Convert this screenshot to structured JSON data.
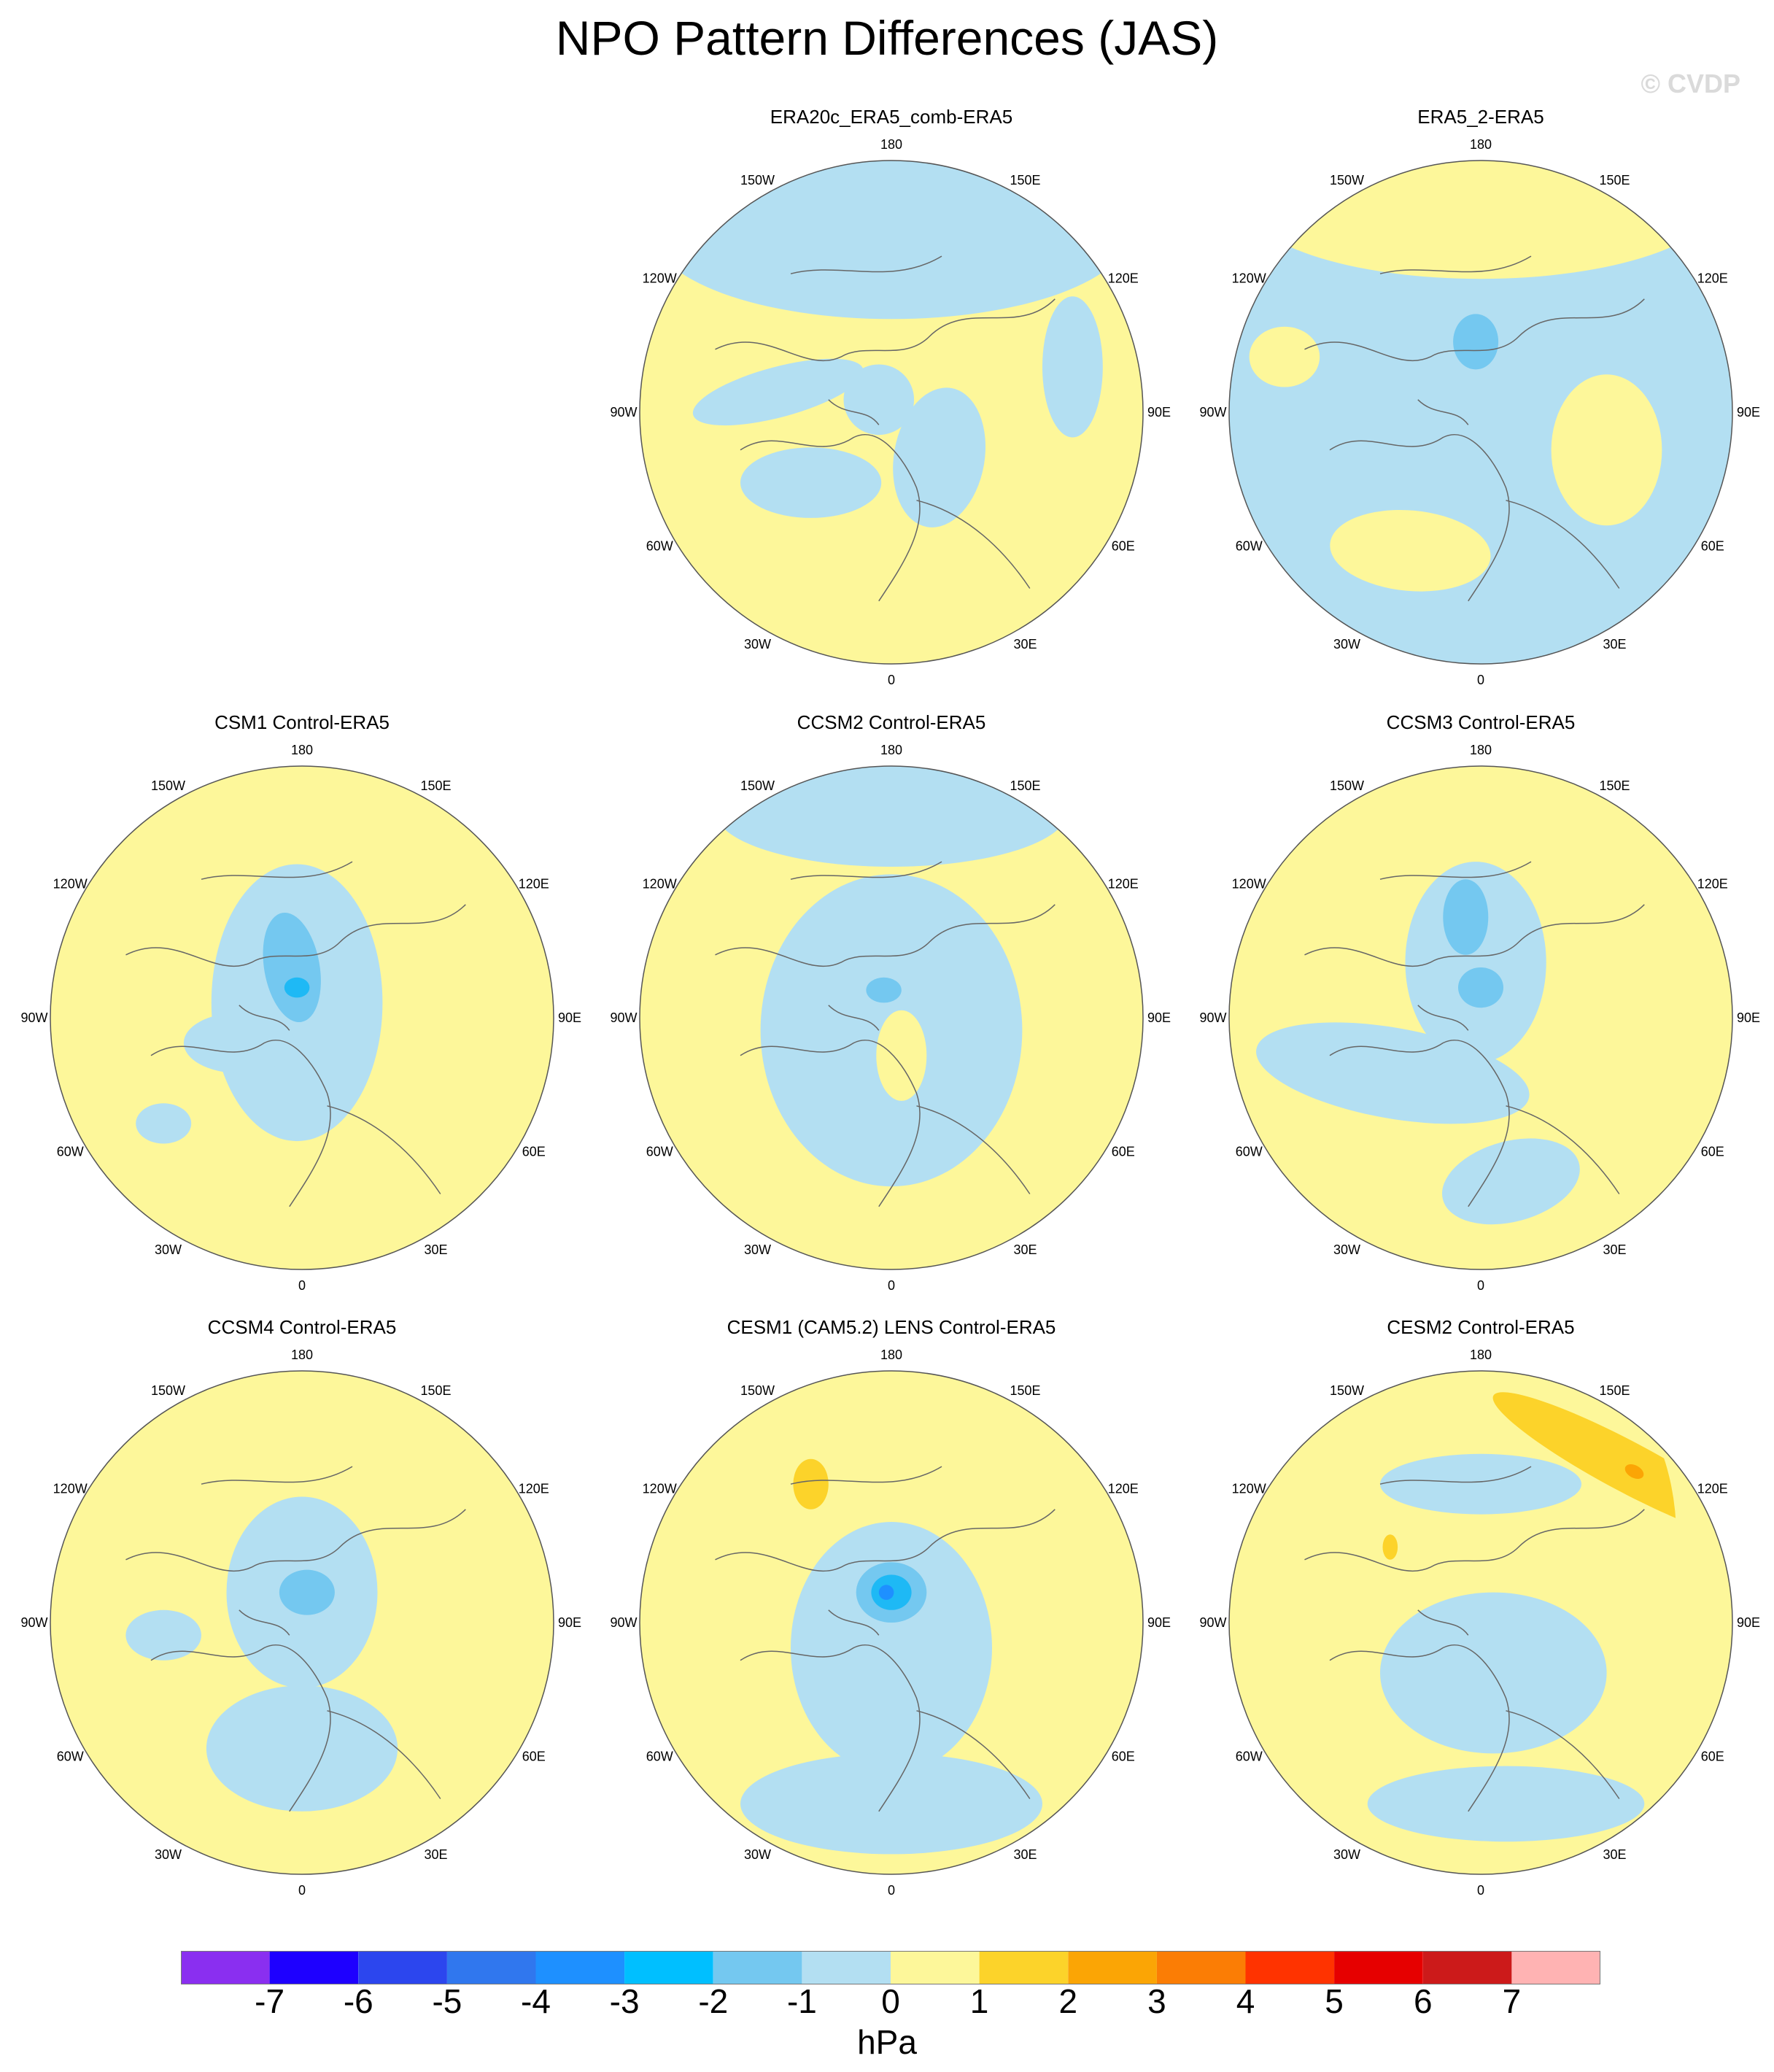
{
  "title": "NPO Pattern Differences (JAS)",
  "watermark": "© CVDP",
  "colors": {
    "neg": "#b3dff2",
    "pos": "#fdf79a",
    "neg2": "#74c8f0",
    "neg3": "#1eb9f5",
    "neg4": "#1e90ff",
    "pos2": "#fcd32a",
    "pos3": "#fba505",
    "land_outline": "#666666"
  },
  "longitude_labels": [
    "180",
    "150E",
    "120E",
    "90E",
    "60E",
    "30E",
    "0",
    "30W",
    "60W",
    "90W",
    "120W",
    "150W"
  ],
  "panels": [
    {
      "id": "era20c",
      "title": "ERA20c_ERA5_comb-ERA5",
      "row": 0,
      "col": 1,
      "dominant_sign": "pos"
    },
    {
      "id": "era5_2",
      "title": "ERA5_2-ERA5",
      "row": 0,
      "col": 2,
      "dominant_sign": "neg"
    },
    {
      "id": "csm1",
      "title": "CSM1 Control-ERA5",
      "row": 1,
      "col": 0,
      "dominant_sign": "pos"
    },
    {
      "id": "ccsm2",
      "title": "CCSM2 Control-ERA5",
      "row": 1,
      "col": 1,
      "dominant_sign": "pos"
    },
    {
      "id": "ccsm3",
      "title": "CCSM3 Control-ERA5",
      "row": 1,
      "col": 2,
      "dominant_sign": "pos"
    },
    {
      "id": "ccsm4",
      "title": "CCSM4 Control-ERA5",
      "row": 2,
      "col": 0,
      "dominant_sign": "pos"
    },
    {
      "id": "cesm1",
      "title": "CESM1 (CAM5.2) LENS Control-ERA5",
      "row": 2,
      "col": 1,
      "dominant_sign": "pos"
    },
    {
      "id": "cesm2",
      "title": "CESM2 Control-ERA5",
      "row": 2,
      "col": 2,
      "dominant_sign": "pos"
    }
  ],
  "colorbar": {
    "units": "hPa",
    "labels": [
      "-7",
      "-6",
      "-5",
      "-4",
      "-3",
      "-2",
      "-1",
      "0",
      "1",
      "2",
      "3",
      "4",
      "5",
      "6",
      "7"
    ],
    "colors": [
      "#8a2ff0",
      "#1e00ff",
      "#2c46ee",
      "#3077ee",
      "#1e90ff",
      "#00bfff",
      "#74c8f0",
      "#b3dff2",
      "#fdf79a",
      "#fcd32a",
      "#fba505",
      "#fb7d05",
      "#ff3300",
      "#e60000",
      "#cc1a1a",
      "#ffb3b3"
    ]
  }
}
